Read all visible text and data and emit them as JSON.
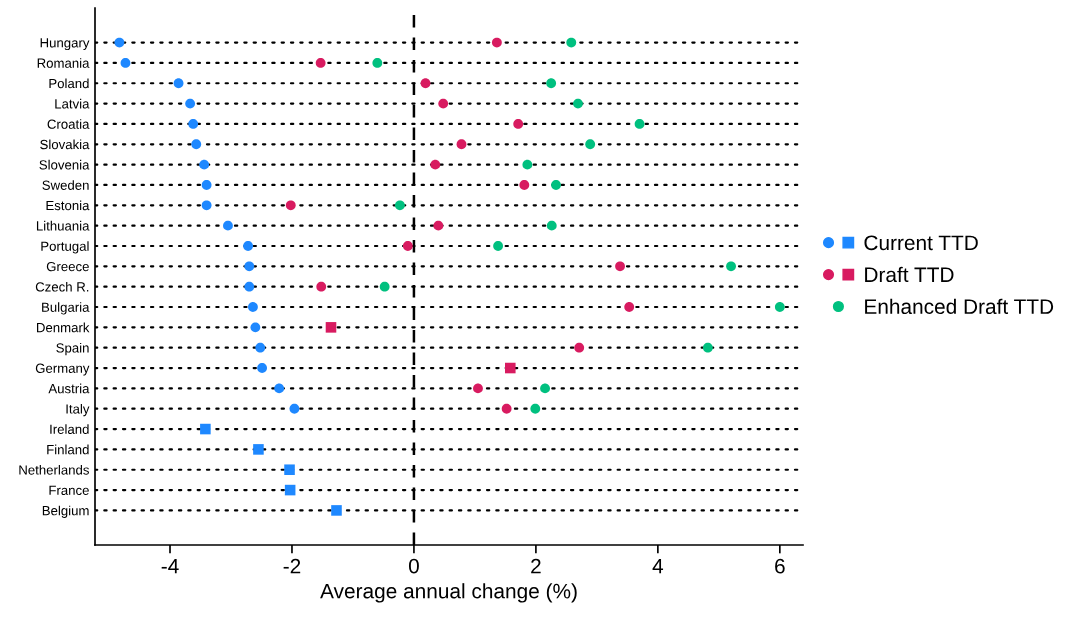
{
  "chart_data": {
    "type": "scatter",
    "xlabel": "Average annual change (%)",
    "categories": [
      "Hungary",
      "Romania",
      "Poland",
      "Latvia",
      "Croatia",
      "Slovakia",
      "Slovenia",
      "Sweden",
      "Estonia",
      "Lithuania",
      "Portugal",
      "Greece",
      "Czech R.",
      "Bulgaria",
      "Denmark",
      "Spain",
      "Germany",
      "Austria",
      "Italy",
      "Ireland",
      "Finland",
      "Netherlands",
      "France",
      "Belgium"
    ],
    "orientation": "horizontal",
    "xlim": [
      -5.23,
      6.38
    ],
    "xticks": [
      -4,
      -2,
      0,
      2,
      4,
      6
    ],
    "grid": "y",
    "line_style": "dotted",
    "legend": "right",
    "ref_lines": [
      {
        "axis": "x",
        "value": 0,
        "line_style": "dashed",
        "color": "#000000"
      }
    ],
    "series": [
      {
        "name": "Current TTD",
        "color": "#1e88ff",
        "marker": "circle",
        "values": [
          -4.83,
          -4.73,
          -3.86,
          -3.67,
          -3.62,
          -3.57,
          -3.44,
          -3.4,
          -3.4,
          -3.05,
          -2.72,
          -2.7,
          -2.7,
          -2.64,
          -2.6,
          -2.52,
          -2.49,
          -2.21,
          -1.96,
          null,
          null,
          null,
          null,
          null
        ]
      },
      {
        "color": "#1e88ff",
        "marker": "square",
        "values": [
          null,
          null,
          null,
          null,
          null,
          null,
          null,
          null,
          null,
          null,
          null,
          null,
          null,
          null,
          null,
          null,
          null,
          null,
          null,
          -3.42,
          -2.55,
          -2.04,
          -2.03,
          -1.27
        ]
      },
      {
        "name": "Draft TTD",
        "color": "#d81b60",
        "marker": "circle",
        "values": [
          1.36,
          -1.53,
          0.19,
          0.48,
          1.71,
          0.78,
          0.35,
          1.81,
          -2.02,
          0.4,
          -0.1,
          3.38,
          -1.52,
          3.53,
          null,
          2.71,
          null,
          1.05,
          1.52,
          null,
          null,
          null,
          null,
          null
        ]
      },
      {
        "color": "#d81b60",
        "marker": "square",
        "values": [
          null,
          null,
          null,
          null,
          null,
          null,
          null,
          null,
          null,
          null,
          null,
          null,
          null,
          null,
          -1.36,
          null,
          1.58,
          null,
          null,
          null,
          null,
          null,
          null,
          null
        ]
      },
      {
        "name": "Enhanced Draft TTD",
        "color": "#00c07f",
        "marker": "circle",
        "values": [
          2.58,
          -0.6,
          2.25,
          2.69,
          3.7,
          2.89,
          1.86,
          2.33,
          -0.23,
          2.26,
          1.38,
          5.2,
          -0.48,
          6.0,
          null,
          4.82,
          null,
          2.15,
          1.99,
          null,
          null,
          null,
          null,
          null
        ]
      }
    ]
  }
}
